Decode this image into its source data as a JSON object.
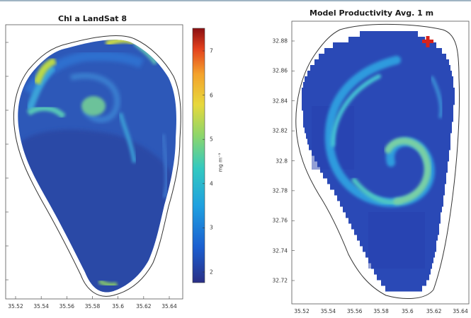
{
  "chart_data": [
    {
      "type": "heatmap",
      "title": "Chl a LandSat 8",
      "x_ticks": [
        "35.52",
        "35.54",
        "35.56",
        "35.58",
        "35.6",
        "35.62",
        "35.64"
      ],
      "y_ticks": [],
      "colorbar": {
        "label": "mg m⁻³",
        "ticks": [
          "2",
          "3",
          "4",
          "5",
          "6",
          "7"
        ],
        "colormap": [
          "#2a2f86",
          "#1b5fd0",
          "#1fa0e0",
          "#33c9c0",
          "#8ed66a",
          "#e7d83c",
          "#f4a22c",
          "#e3401d",
          "#8a0f12"
        ]
      }
    },
    {
      "type": "heatmap",
      "title": "Model Productivity Avg. 1 m",
      "x_ticks": [
        "35.52",
        "35.54",
        "35.56",
        "35.58",
        "35.6",
        "35.62",
        "35.64"
      ],
      "y_ticks": [
        "32.88",
        "32.86",
        "32.84",
        "32.82",
        "32.8",
        "32.78",
        "32.76",
        "32.74",
        "32.72"
      ],
      "marker": "red cross"
    }
  ]
}
